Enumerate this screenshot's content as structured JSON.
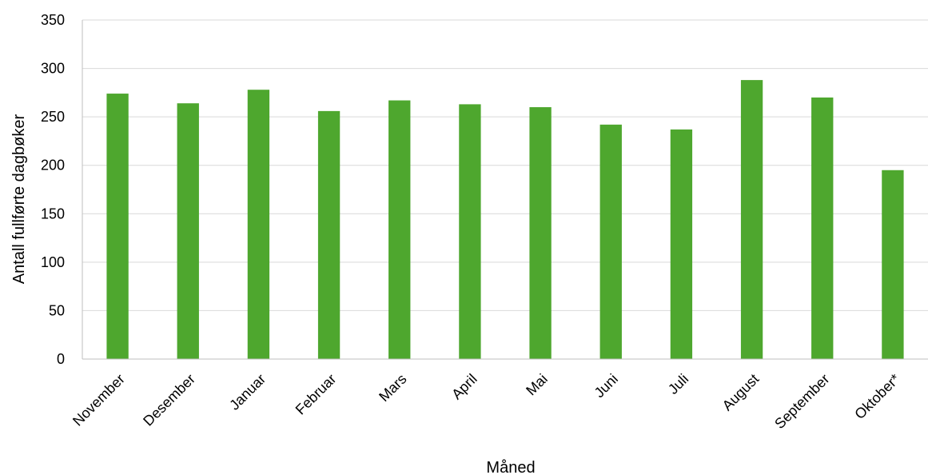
{
  "chart_data": {
    "type": "bar",
    "categories": [
      "November",
      "Desember",
      "Januar",
      "Februar",
      "Mars",
      "April",
      "Mai",
      "Juni",
      "Juli",
      "August",
      "September",
      "Oktober*"
    ],
    "series": [
      {
        "values": [
          274,
          264,
          278,
          256,
          267,
          263,
          260,
          242,
          237,
          288,
          270,
          195
        ]
      }
    ],
    "title": "",
    "xlabel": "Måned",
    "ylabel": "Antall fullførte dagbøker",
    "ylim": [
      0,
      350
    ],
    "yticks": [
      0,
      50,
      100,
      150,
      200,
      250,
      300,
      350
    ],
    "grid": true,
    "legend": "none",
    "colors": {
      "bar": "#4ea72e",
      "grid": "#d9d9d9",
      "axis": "#bfbfbf"
    }
  }
}
